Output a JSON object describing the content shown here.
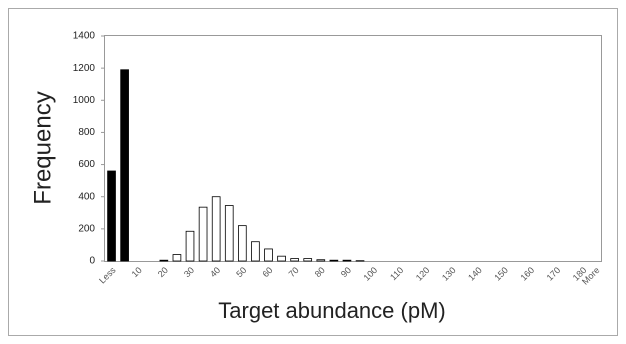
{
  "chart_data": {
    "type": "bar",
    "xlabel": "Target abundance (pM)",
    "ylabel": "Frequency",
    "categories": [
      "Less",
      null,
      "10",
      null,
      "20",
      null,
      "30",
      null,
      "40",
      null,
      "50",
      null,
      "60",
      null,
      "70",
      null,
      "80",
      null,
      "90",
      null,
      "100",
      null,
      "110",
      null,
      "120",
      null,
      "130",
      null,
      "140",
      null,
      "150",
      null,
      "160",
      null,
      "170",
      null,
      "180",
      "More"
    ],
    "values": [
      560,
      1190,
      0,
      0,
      5,
      40,
      185,
      335,
      400,
      345,
      220,
      120,
      75,
      30,
      15,
      15,
      8,
      5,
      5,
      2,
      0,
      0,
      0,
      0,
      0,
      0,
      0,
      0,
      0,
      0,
      0,
      0,
      0,
      0,
      0,
      0,
      0,
      0
    ],
    "colors": [
      "#000000",
      "#000000",
      "#ffffff",
      "#ffffff",
      "#ffffff",
      "#ffffff",
      "#ffffff",
      "#ffffff",
      "#ffffff",
      "#ffffff",
      "#ffffff",
      "#ffffff",
      "#ffffff",
      "#ffffff",
      "#ffffff",
      "#ffffff",
      "#ffffff",
      "#ffffff",
      "#ffffff",
      "#ffffff",
      "#ffffff",
      "#ffffff",
      "#ffffff",
      "#ffffff",
      "#ffffff",
      "#ffffff",
      "#ffffff",
      "#ffffff",
      "#ffffff",
      "#ffffff",
      "#ffffff",
      "#ffffff",
      "#ffffff",
      "#ffffff",
      "#ffffff",
      "#ffffff",
      "#ffffff",
      "#ffffff"
    ],
    "ylim": [
      0,
      1400
    ],
    "yticks": [
      0,
      200,
      400,
      600,
      800,
      1000,
      1200,
      1400
    ],
    "grid": false
  }
}
